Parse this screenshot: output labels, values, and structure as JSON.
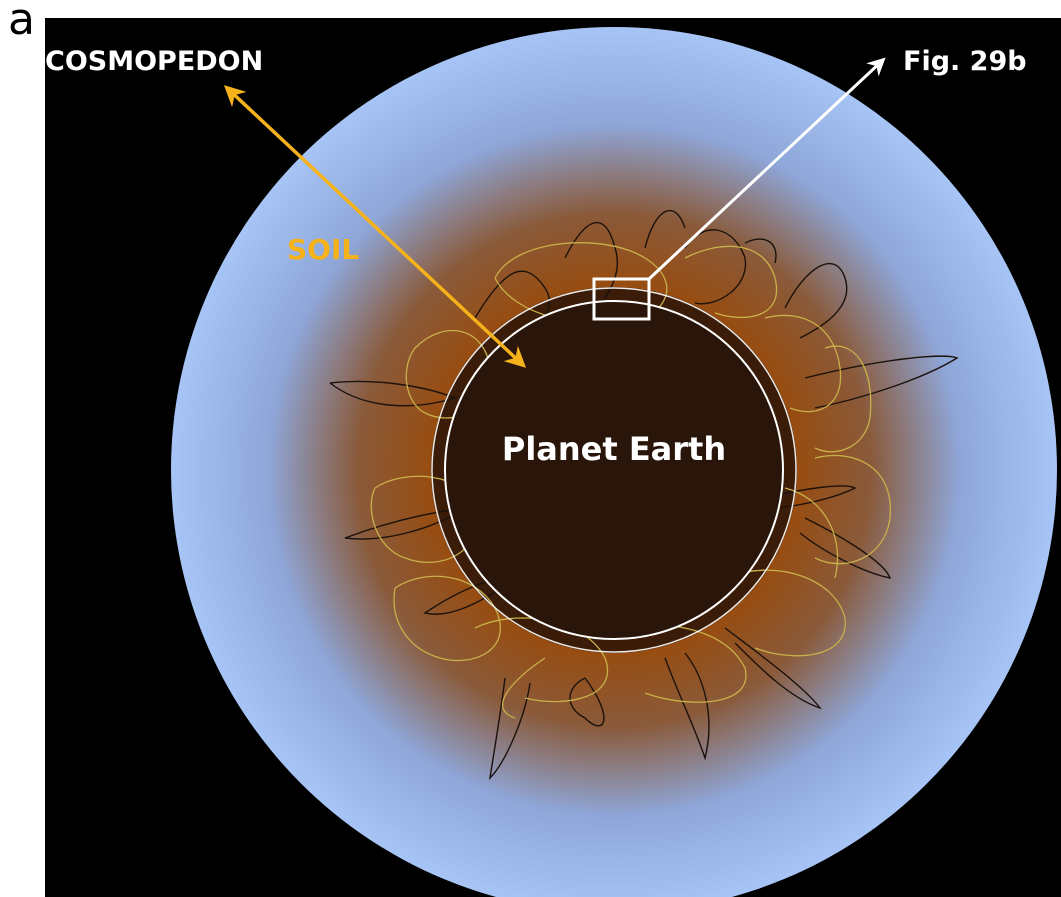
{
  "panel_letter": "a",
  "labels": {
    "cosmopedon": "COSMOPEDON",
    "fig_ref": "Fig. 29b",
    "soil": "SOIL",
    "planet": "Planet Earth"
  },
  "colors": {
    "background": "#000000",
    "outer_sky": "#a6c4f5",
    "soil_brown": "#9a4a08",
    "earth_core": "#2a150a",
    "soil_label": "#f5b21a",
    "arrow_white": "#ffffff",
    "line_yellow": "#c8b04a",
    "line_dark": "#1b120c"
  }
}
